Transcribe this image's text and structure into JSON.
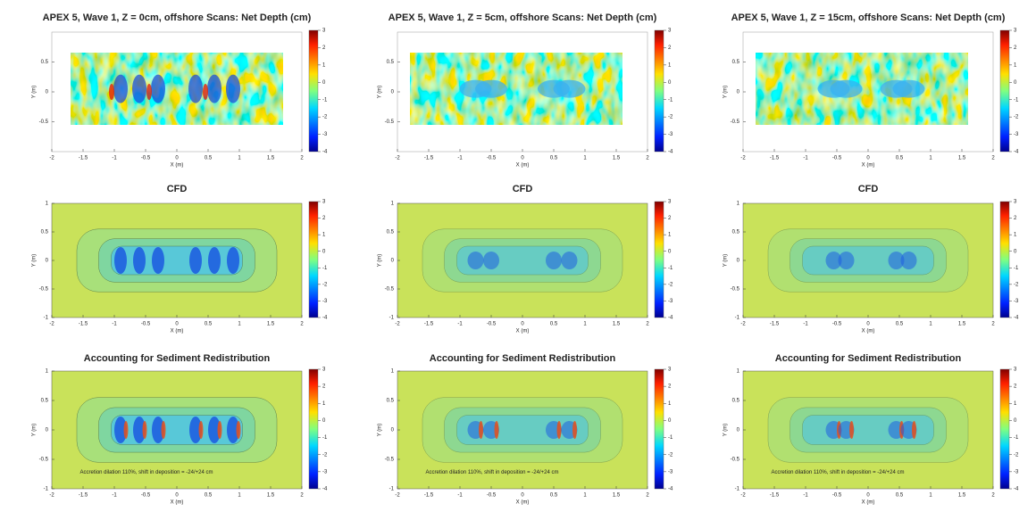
{
  "chart_data": [
    {
      "type": "heatmap",
      "title": "APEX 5, Wave 1, Z = 0cm, offshore Scans: Net Depth (cm)",
      "xlabel": "X (m)",
      "ylabel": "Y (m)",
      "xlim": [
        -2,
        2
      ],
      "xticks": [
        -2,
        -1.5,
        -1,
        -0.5,
        0,
        0.5,
        1,
        1.5,
        2
      ],
      "ylim": [
        -1,
        1
      ],
      "yticks": [
        -0.5,
        0,
        0.5
      ],
      "clim": [
        -4,
        3
      ],
      "cticks": [
        -4,
        -3,
        -2,
        -1,
        0,
        1,
        2,
        3
      ]
    },
    {
      "type": "heatmap",
      "title": "APEX 5, Wave 1, Z = 5cm, offshore Scans: Net Depth (cm)",
      "xlabel": "X (m)",
      "ylabel": "Y (m)",
      "xlim": [
        -2,
        2
      ],
      "xticks": [
        -2,
        -1.5,
        -1,
        -0.5,
        0,
        0.5,
        1,
        1.5,
        2
      ],
      "ylim": [
        -1,
        1
      ],
      "yticks": [
        -0.5,
        0,
        0.5
      ],
      "clim": [
        -4,
        3
      ],
      "cticks": [
        -4,
        -3,
        -2,
        -1,
        0,
        1,
        2,
        3
      ]
    },
    {
      "type": "heatmap",
      "title": "APEX 5, Wave 1, Z = 15cm, offshore Scans: Net Depth (cm)",
      "xlabel": "X (m)",
      "ylabel": "Y (m)",
      "xlim": [
        -2,
        2
      ],
      "xticks": [
        -2,
        -1.5,
        -1,
        -0.5,
        0,
        0.5,
        1,
        1.5,
        2
      ],
      "ylim": [
        -1,
        1
      ],
      "yticks": [
        -0.5,
        0,
        0.5
      ],
      "clim": [
        -4,
        3
      ],
      "cticks": [
        -4,
        -3,
        -2,
        -1,
        0,
        1,
        2,
        3
      ]
    },
    {
      "type": "contour",
      "title": "CFD",
      "xlabel": "X (m)",
      "ylabel": "Y (m)",
      "xlim": [
        -2,
        2
      ],
      "xticks": [
        -2,
        -1.5,
        -1,
        -0.5,
        0,
        0.5,
        1,
        1.5,
        2
      ],
      "ylim": [
        -1,
        1
      ],
      "yticks": [
        -1,
        -0.5,
        0,
        0.5,
        1
      ],
      "clim": [
        -4,
        3
      ],
      "cticks": [
        -4,
        -3,
        -2,
        -1,
        0,
        1,
        2,
        3
      ]
    },
    {
      "type": "contour",
      "title": "CFD",
      "xlabel": "X (m)",
      "ylabel": "Y (m)",
      "xlim": [
        -2,
        2
      ],
      "xticks": [
        -2,
        -1.5,
        -1,
        -0.5,
        0,
        0.5,
        1,
        1.5,
        2
      ],
      "ylim": [
        -1,
        1
      ],
      "yticks": [
        -1,
        -0.5,
        0,
        0.5,
        1
      ],
      "clim": [
        -4,
        3
      ],
      "cticks": [
        -4,
        -3,
        -2,
        -1,
        0,
        1,
        2,
        3
      ]
    },
    {
      "type": "contour",
      "title": "CFD",
      "xlabel": "X (m)",
      "ylabel": "Y (m)",
      "xlim": [
        -2,
        2
      ],
      "xticks": [
        -2,
        -1.5,
        -1,
        -0.5,
        0,
        0.5,
        1,
        1.5,
        2
      ],
      "ylim": [
        -1,
        1
      ],
      "yticks": [
        -1,
        -0.5,
        0,
        0.5,
        1
      ],
      "clim": [
        -4,
        3
      ],
      "cticks": [
        -4,
        -3,
        -2,
        -1,
        0,
        1,
        2,
        3
      ]
    },
    {
      "type": "contour",
      "title": "Accounting for Sediment Redistribution",
      "xlabel": "X (m)",
      "ylabel": "Y (m)",
      "xlim": [
        -2,
        2
      ],
      "xticks": [
        -2,
        -1.5,
        -1,
        -0.5,
        0,
        0.5,
        1,
        1.5,
        2
      ],
      "ylim": [
        -1,
        1
      ],
      "yticks": [
        -1,
        -0.5,
        0,
        0.5,
        1
      ],
      "clim": [
        -4,
        3
      ],
      "cticks": [
        -4,
        -3,
        -2,
        -1,
        0,
        1,
        2,
        3
      ],
      "annotation": "Accretion dilation 110%, shift in deposition = -24/+24 cm"
    },
    {
      "type": "contour",
      "title": "Accounting for Sediment Redistribution",
      "xlabel": "X (m)",
      "ylabel": "Y (m)",
      "xlim": [
        -2,
        2
      ],
      "xticks": [
        -2,
        -1.5,
        -1,
        -0.5,
        0,
        0.5,
        1,
        1.5,
        2
      ],
      "ylim": [
        -1,
        1
      ],
      "yticks": [
        -1,
        -0.5,
        0,
        0.5,
        1
      ],
      "clim": [
        -4,
        3
      ],
      "cticks": [
        -4,
        -3,
        -2,
        -1,
        0,
        1,
        2,
        3
      ],
      "annotation": "Accretion dilation 110%, shift in deposition = -24/+24 cm"
    },
    {
      "type": "contour",
      "title": "Accounting for Sediment Redistribution",
      "xlabel": "X (m)",
      "ylabel": "Y (m)",
      "xlim": [
        -2,
        2
      ],
      "xticks": [
        -2,
        -1.5,
        -1,
        -0.5,
        0,
        0.5,
        1,
        1.5,
        2
      ],
      "ylim": [
        -1,
        1
      ],
      "yticks": [
        -1,
        -0.5,
        0,
        0.5,
        1
      ],
      "clim": [
        -4,
        3
      ],
      "cticks": [
        -4,
        -3,
        -2,
        -1,
        0,
        1,
        2,
        3
      ],
      "annotation": "Accretion dilation 110%, shift in deposition = -24/+24 cm"
    }
  ]
}
